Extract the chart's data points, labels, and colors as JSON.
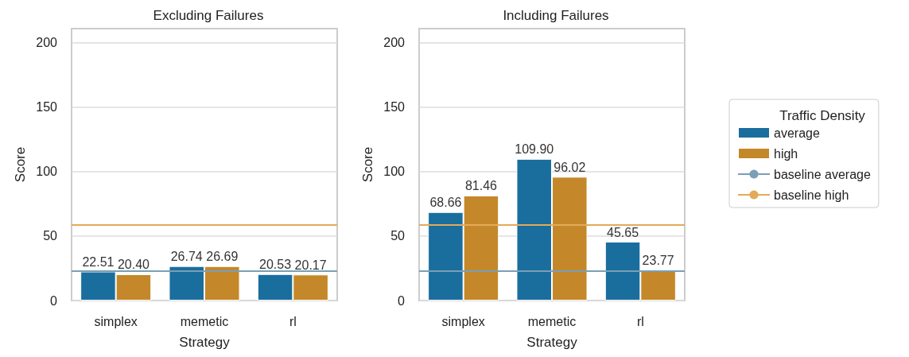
{
  "chart_data": [
    {
      "type": "bar",
      "title": "Excluding Failures",
      "xlabel": "Strategy",
      "ylabel": "Score",
      "categories": [
        "simplex",
        "memetic",
        "rl"
      ],
      "series": [
        {
          "color": "#1a6e9e",
          "values": [
            22.51,
            26.74,
            20.53
          ],
          "value_labels": [
            "22.51",
            "26.74",
            "20.53"
          ]
        },
        {
          "color": "#c4882a",
          "values": [
            20.4,
            26.69,
            20.17
          ],
          "value_labels": [
            "20.40",
            "26.69",
            "20.17"
          ]
        }
      ],
      "ylim": [
        0,
        211
      ],
      "yticks": [
        0,
        50,
        100,
        150,
        200
      ],
      "grid": "y",
      "ref_lines": [
        {
          "axis": "y",
          "value": 23.0,
          "color": "#7a9fb6"
        },
        {
          "axis": "y",
          "value": 58.6,
          "color": "#e3aa5a"
        }
      ]
    },
    {
      "type": "bar",
      "title": "Including Failures",
      "xlabel": "Strategy",
      "ylabel": "Score",
      "categories": [
        "simplex",
        "memetic",
        "rl"
      ],
      "series": [
        {
          "name": "average",
          "color": "#1a6e9e",
          "values": [
            68.66,
            109.9,
            45.65
          ],
          "value_labels": [
            "68.66",
            "109.90",
            "45.65"
          ]
        },
        {
          "name": "high",
          "color": "#c4882a",
          "values": [
            81.46,
            96.02,
            23.77
          ],
          "value_labels": [
            "81.46",
            "96.02",
            "23.77"
          ]
        }
      ],
      "ylim": [
        0,
        211
      ],
      "yticks": [
        0,
        50,
        100,
        150,
        200
      ],
      "grid": "y",
      "legend": "right",
      "legend_title": "Traffic Density",
      "ref_lines": [
        {
          "axis": "y",
          "value": 23.0,
          "label": "baseline average",
          "color": "#7a9fb6"
        },
        {
          "axis": "y",
          "value": 58.6,
          "label": "baseline high",
          "color": "#e3aa5a"
        }
      ]
    }
  ]
}
